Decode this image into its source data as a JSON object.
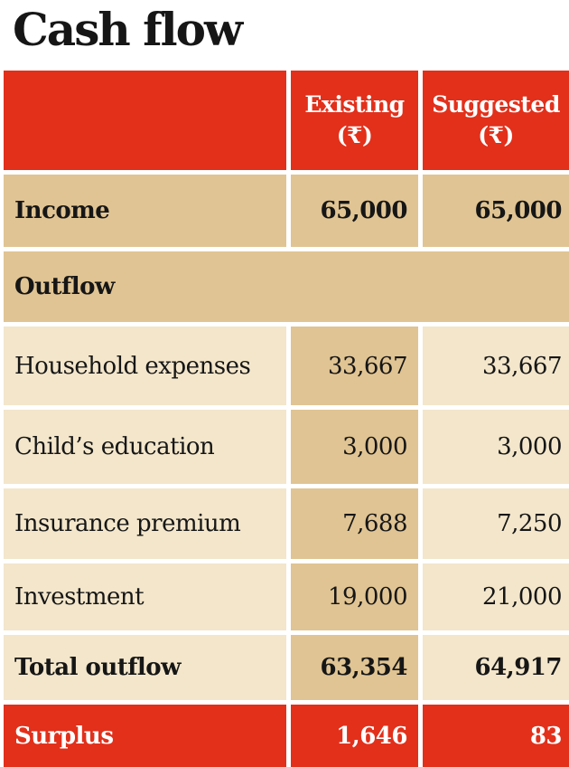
{
  "chart_data": {
    "type": "table",
    "title": "Cash flow",
    "columns": [
      {
        "label": "Existing",
        "unit": "(₹)"
      },
      {
        "label": "Suggested",
        "unit": "(₹)"
      }
    ],
    "income": {
      "label": "Income",
      "existing": "65,000",
      "suggested": "65,000"
    },
    "outflow_label": "Outflow",
    "rows": [
      {
        "label": "Household expenses",
        "existing": "33,667",
        "suggested": "33,667"
      },
      {
        "label": "Child’s education",
        "existing": "3,000",
        "suggested": "3,000"
      },
      {
        "label": "Insurance premium",
        "existing": "7,688",
        "suggested": "7,250"
      },
      {
        "label": "Investment",
        "existing": "19,000",
        "suggested": "21,000"
      }
    ],
    "total_outflow": {
      "label": "Total outflow",
      "existing": "63,354",
      "suggested": "64,917"
    },
    "surplus": {
      "label": "Surplus",
      "existing": "1,646",
      "suggested": "83"
    }
  },
  "colors": {
    "header_red": "#e2301b",
    "tan": "#e0c493",
    "cream": "#f3e6cb",
    "title_text": "#161616"
  }
}
